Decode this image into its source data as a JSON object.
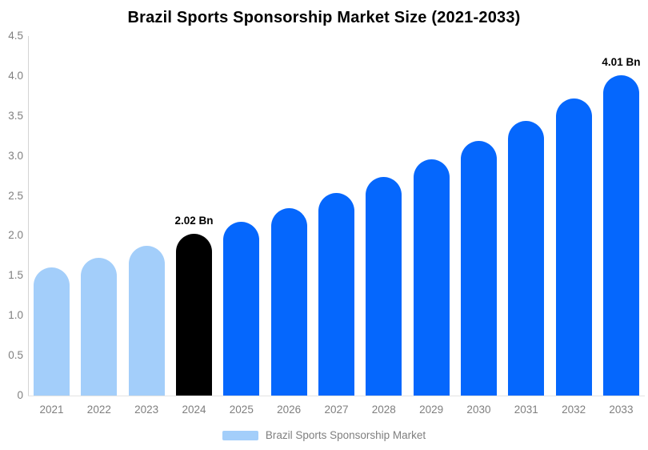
{
  "chart_data": {
    "type": "bar",
    "title": "Brazil Sports Sponsorship Market Size (2021-2033)",
    "categories": [
      "2021",
      "2022",
      "2023",
      "2024",
      "2025",
      "2026",
      "2027",
      "2028",
      "2029",
      "2030",
      "2031",
      "2032",
      "2033"
    ],
    "values": [
      1.6,
      1.72,
      1.87,
      2.02,
      2.18,
      2.35,
      2.54,
      2.74,
      2.96,
      3.19,
      3.44,
      3.72,
      4.01
    ],
    "unit": "Bn",
    "bar_colors": [
      "#A3CEFA",
      "#A3CEFA",
      "#A3CEFA",
      "#000000",
      "#0567FD",
      "#0567FD",
      "#0567FD",
      "#0567FD",
      "#0567FD",
      "#0567FD",
      "#0567FD",
      "#0567FD",
      "#0567FD"
    ],
    "data_labels": {
      "2024": "2.02 Bn",
      "2033": "4.01 Bn"
    },
    "xlabel": "",
    "ylabel": "",
    "ylim": [
      0,
      4.5
    ],
    "yticks": [
      {
        "value": 0,
        "label": "0"
      },
      {
        "value": 0.5,
        "label": "0.5"
      },
      {
        "value": 1.0,
        "label": "1.0"
      },
      {
        "value": 1.5,
        "label": "1.5"
      },
      {
        "value": 2.0,
        "label": "2.0"
      },
      {
        "value": 2.5,
        "label": "2.5"
      },
      {
        "value": 3.0,
        "label": "3.0"
      },
      {
        "value": 3.5,
        "label": "3.5"
      },
      {
        "value": 4.0,
        "label": "4.0"
      },
      {
        "value": 4.5,
        "label": "4.5"
      }
    ],
    "grid": false,
    "axis_color": "#d4d4d4",
    "tick_label_color": "#7f7f7f",
    "legend": {
      "position": "bottom",
      "entries": [
        {
          "label": "Brazil Sports Sponsorship Market",
          "color": "#A3CEFA"
        }
      ]
    }
  }
}
